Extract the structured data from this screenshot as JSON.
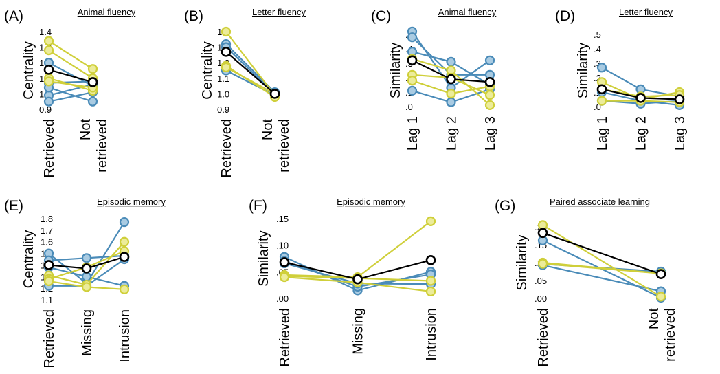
{
  "colors": {
    "blue": "#4a8bb8",
    "blue_fill": "#a9cbe2",
    "yellow": "#cfcf3a",
    "yellow_fill": "#ecec9a",
    "mean": "#000000"
  },
  "chart_data": [
    {
      "panel": "(A)",
      "title": "Animal fluency",
      "type": "line",
      "ylabel": "Centrality",
      "ylim": [
        0.9,
        1.4
      ],
      "yticks": [
        "0.9",
        "1.0",
        "1.1",
        "1.2",
        "1.3",
        "1.4"
      ],
      "categories": [
        [
          "Retrieved"
        ],
        [
          "Not",
          "retrieved"
        ]
      ],
      "series": [
        {
          "group": "yellow",
          "values": [
            1.34,
            1.16
          ]
        },
        {
          "group": "yellow",
          "values": [
            1.28,
            1.1
          ]
        },
        {
          "group": "yellow",
          "values": [
            1.1,
            1.02
          ]
        },
        {
          "group": "yellow",
          "values": [
            1.08,
            1.04
          ]
        },
        {
          "group": "blue",
          "values": [
            1.2,
            1.05
          ]
        },
        {
          "group": "blue",
          "values": [
            1.07,
            1.08
          ]
        },
        {
          "group": "blue",
          "values": [
            0.99,
            1.06
          ]
        },
        {
          "group": "blue",
          "values": [
            0.95,
            1.01
          ]
        },
        {
          "group": "blue",
          "values": [
            1.04,
            0.95
          ]
        },
        {
          "group": "mean",
          "values": [
            1.155,
            1.075
          ]
        }
      ]
    },
    {
      "panel": "(B)",
      "title": "Letter fluency",
      "type": "line",
      "ylabel": "Centrality",
      "ylim": [
        0.9,
        1.4
      ],
      "yticks": [
        "0.9",
        "1.0",
        "1.1",
        "1.2",
        "1.3",
        "1.4"
      ],
      "categories": [
        [
          "Retrieved"
        ],
        [
          "Not",
          "retrieved"
        ]
      ],
      "series": [
        {
          "group": "yellow",
          "values": [
            1.4,
            0.99
          ]
        },
        {
          "group": "yellow",
          "values": [
            1.18,
            0.98
          ]
        },
        {
          "group": "yellow",
          "values": [
            1.17,
            1.0
          ]
        },
        {
          "group": "blue",
          "values": [
            1.32,
            1.01
          ]
        },
        {
          "group": "blue",
          "values": [
            1.3,
            1.0
          ]
        },
        {
          "group": "blue",
          "values": [
            1.15,
            0.99
          ]
        },
        {
          "group": "mean",
          "values": [
            1.27,
            1.0
          ]
        }
      ]
    },
    {
      "panel": "(C)",
      "title": "Animal fluency",
      "type": "line",
      "ylabel": "Similarity",
      "ylim": [
        0,
        0.5
      ],
      "yticks": [
        ".0",
        ".1",
        ".2",
        ".3",
        ".4",
        ".5"
      ],
      "categories": [
        [
          "Lag 1"
        ],
        [
          "Lag 2"
        ],
        [
          "Lag 3"
        ]
      ],
      "series": [
        {
          "group": "yellow",
          "values": [
            0.33,
            0.25,
            0.01
          ]
        },
        {
          "group": "yellow",
          "values": [
            0.22,
            0.2,
            0.08
          ]
        },
        {
          "group": "yellow",
          "values": [
            0.18,
            0.09,
            0.14
          ]
        },
        {
          "group": "blue",
          "values": [
            0.52,
            0.13,
            0.32
          ]
        },
        {
          "group": "blue",
          "values": [
            0.48,
            0.22,
            0.22
          ]
        },
        {
          "group": "blue",
          "values": [
            0.38,
            0.31,
            0.15
          ]
        },
        {
          "group": "blue",
          "values": [
            0.11,
            0.03,
            0.12
          ]
        },
        {
          "group": "mean",
          "values": [
            0.32,
            0.19,
            0.17
          ]
        }
      ]
    },
    {
      "panel": "(D)",
      "title": "Letter fluency",
      "type": "line",
      "ylabel": "Similarity",
      "ylim": [
        0,
        0.5
      ],
      "yticks": [
        ".0",
        ".1",
        ".2",
        ".3",
        ".4",
        ".5"
      ],
      "categories": [
        [
          "Lag 1"
        ],
        [
          "Lag 2"
        ],
        [
          "Lag 3"
        ]
      ],
      "series": [
        {
          "group": "yellow",
          "values": [
            0.17,
            0.05,
            0.1
          ]
        },
        {
          "group": "yellow",
          "values": [
            0.12,
            0.07,
            0.08
          ]
        },
        {
          "group": "yellow",
          "values": [
            0.04,
            0.04,
            0.03
          ]
        },
        {
          "group": "blue",
          "values": [
            0.27,
            0.12,
            0.07
          ]
        },
        {
          "group": "blue",
          "values": [
            0.1,
            0.04,
            0.01
          ]
        },
        {
          "group": "blue",
          "values": [
            0.04,
            0.02,
            0.04
          ]
        },
        {
          "group": "mean",
          "values": [
            0.12,
            0.06,
            0.05
          ]
        }
      ]
    },
    {
      "panel": "(E)",
      "title": "Episodic memory",
      "type": "line",
      "ylabel": "Centrality",
      "ylim": [
        1.1,
        1.8
      ],
      "yticks": [
        "1.1",
        "1.2",
        "1.3",
        "1.4",
        "1.5",
        "1.6",
        "1.7",
        "1.8"
      ],
      "categories": [
        [
          "Retrieved"
        ],
        [
          "Missing"
        ],
        [
          "Intrusion"
        ]
      ],
      "series": [
        {
          "group": "yellow",
          "values": [
            1.31,
            1.23,
            1.6
          ]
        },
        {
          "group": "yellow",
          "values": [
            1.28,
            1.38,
            1.52
          ]
        },
        {
          "group": "yellow",
          "values": [
            1.26,
            1.21,
            1.19
          ]
        },
        {
          "group": "blue",
          "values": [
            1.5,
            1.24,
            1.77
          ]
        },
        {
          "group": "blue",
          "values": [
            1.44,
            1.46,
            1.48
          ]
        },
        {
          "group": "blue",
          "values": [
            1.38,
            1.3,
            1.22
          ]
        },
        {
          "group": "blue",
          "values": [
            1.22,
            1.22,
            1.45
          ]
        },
        {
          "group": "mean",
          "values": [
            1.4,
            1.37,
            1.47
          ]
        }
      ]
    },
    {
      "panel": "(F)",
      "title": "Episodic memory",
      "type": "line",
      "ylabel": "Similarity",
      "ylim": [
        0,
        0.15
      ],
      "yticks": [
        ".00",
        ".05",
        ".10",
        ".15"
      ],
      "categories": [
        [
          "Retrieved"
        ],
        [
          "Missing"
        ],
        [
          "Intrusion"
        ]
      ],
      "series": [
        {
          "group": "yellow",
          "values": [
            0.044,
            0.04,
            0.145
          ]
        },
        {
          "group": "yellow",
          "values": [
            0.042,
            0.038,
            0.033
          ]
        },
        {
          "group": "yellow",
          "values": [
            0.04,
            0.03,
            0.013
          ]
        },
        {
          "group": "blue",
          "values": [
            0.078,
            0.015,
            0.05
          ]
        },
        {
          "group": "blue",
          "values": [
            0.07,
            0.022,
            0.045
          ]
        },
        {
          "group": "blue",
          "values": [
            0.066,
            0.028,
            0.027
          ]
        },
        {
          "group": "mean",
          "values": [
            0.068,
            0.036,
            0.072
          ]
        }
      ]
    },
    {
      "panel": "(G)",
      "title": "Paired associate learning",
      "type": "line",
      "ylabel": "Similarity",
      "ylim": [
        0,
        0.2
      ],
      "yticks": [
        ".00",
        ".05",
        ".10",
        ".15",
        ".20"
      ],
      "categories": [
        [
          "Retrieved"
        ],
        [
          "Not",
          "retrieved"
        ]
      ],
      "series": [
        {
          "group": "yellow",
          "values": [
            0.205,
            0.005
          ]
        },
        {
          "group": "yellow",
          "values": [
            0.1,
            0.07
          ]
        },
        {
          "group": "yellow",
          "values": [
            0.097,
            0.07
          ]
        },
        {
          "group": "blue",
          "values": [
            0.162,
            0.002
          ]
        },
        {
          "group": "blue",
          "values": [
            0.096,
            0.075
          ]
        },
        {
          "group": "blue",
          "values": [
            0.093,
            0.02
          ]
        },
        {
          "group": "mean",
          "values": [
            0.183,
            0.068
          ]
        }
      ]
    }
  ]
}
